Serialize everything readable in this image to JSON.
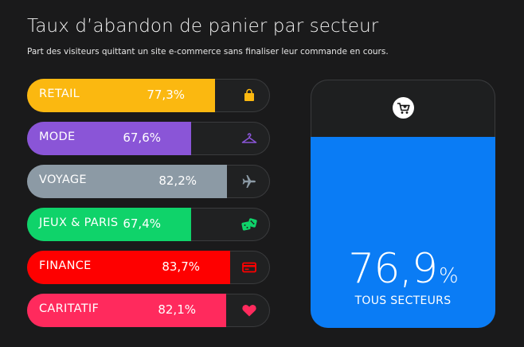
{
  "chart_data": {
    "type": "bar",
    "title": "Taux d’abandon de panier par secteur",
    "subtitle": "Part des visiteurs quittant un site e-commerce sans finaliser leur commande en cours.",
    "unit": "%",
    "ylim": [
      0,
      100
    ],
    "categories": [
      "RETAIL",
      "MODE",
      "VOYAGE",
      "JEUX & PARIS",
      "FINANCE",
      "CARITATIF"
    ],
    "values": [
      77.3,
      67.6,
      82.2,
      67.4,
      83.7,
      82.1
    ],
    "value_labels": [
      "77,3%",
      "67,6%",
      "82,2%",
      "67,4%",
      "83,7%",
      "82,1%"
    ],
    "colors": [
      "#fbb810",
      "#8a55d7",
      "#8c9aa5",
      "#0fd36a",
      "#fe0000",
      "#ff2a5d"
    ],
    "icons": [
      "shopping-bag-icon",
      "hanger-icon",
      "airplane-icon",
      "dice-icon",
      "credit-card-icon",
      "heart-icon"
    ],
    "total": {
      "value": 76.9,
      "value_text": "76,9",
      "unit": "%",
      "label": "TOUS SECTEURS",
      "color": "#0a7cf5",
      "icon": "shopping-cart-icon"
    }
  }
}
